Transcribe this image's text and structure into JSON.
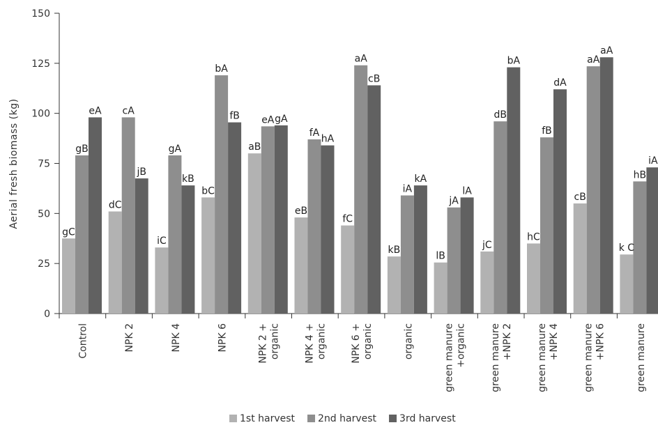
{
  "chart_data": {
    "type": "bar",
    "ylabel": "Aerial fresh biomass  (kg)",
    "xlabel": "",
    "ylim": [
      0,
      150
    ],
    "yticks": [
      0,
      25,
      50,
      75,
      100,
      125,
      150
    ],
    "grid": false,
    "legend_position": "bottom",
    "categories": [
      [
        "Control"
      ],
      [
        "NPK 2"
      ],
      [
        "NPK 4"
      ],
      [
        "NPK 6"
      ],
      [
        "NPK 2 +",
        "organic"
      ],
      [
        "NPK 4 +",
        "organic"
      ],
      [
        "NPK 6 +",
        "organic"
      ],
      [
        "organic"
      ],
      [
        "green manure",
        "+organic"
      ],
      [
        "green manure",
        "+NPK 2"
      ],
      [
        "green manure",
        "+NPK 4"
      ],
      [
        "green manure",
        "+NPK 6"
      ],
      [
        "green manure"
      ]
    ],
    "series": [
      {
        "name": "1st harvest",
        "color": "#b2b2b2",
        "values": [
          37.5,
          51,
          33,
          58,
          80,
          48,
          44,
          28.5,
          25.5,
          31,
          35,
          55,
          29.5
        ],
        "labels": [
          "gC",
          "dC",
          "iC",
          "bC",
          "aB",
          "eB",
          "fC",
          "kB",
          "lB",
          "jC",
          "hC",
          "cB",
          "k C"
        ]
      },
      {
        "name": "2nd harvest",
        "color": "#8e8e8e",
        "values": [
          79,
          98,
          79,
          119,
          93.5,
          87,
          124,
          59,
          53,
          96,
          88,
          123.5,
          66
        ],
        "labels": [
          "gB",
          "cA",
          "gA",
          "bA",
          "eA",
          "fA",
          "aA",
          "iA",
          "jA",
          "dB",
          "fB",
          "aA",
          "hB"
        ]
      },
      {
        "name": "3rd harvest",
        "color": "#616161",
        "values": [
          98,
          67.5,
          64,
          95.5,
          94,
          84,
          114,
          64,
          58,
          123,
          112,
          128,
          73
        ],
        "labels": [
          "eA",
          "jB",
          "kB",
          "fB",
          "gA",
          "hA",
          "cB",
          "kA",
          "lA",
          "bA",
          "dA",
          "aA",
          "iA"
        ]
      }
    ]
  }
}
